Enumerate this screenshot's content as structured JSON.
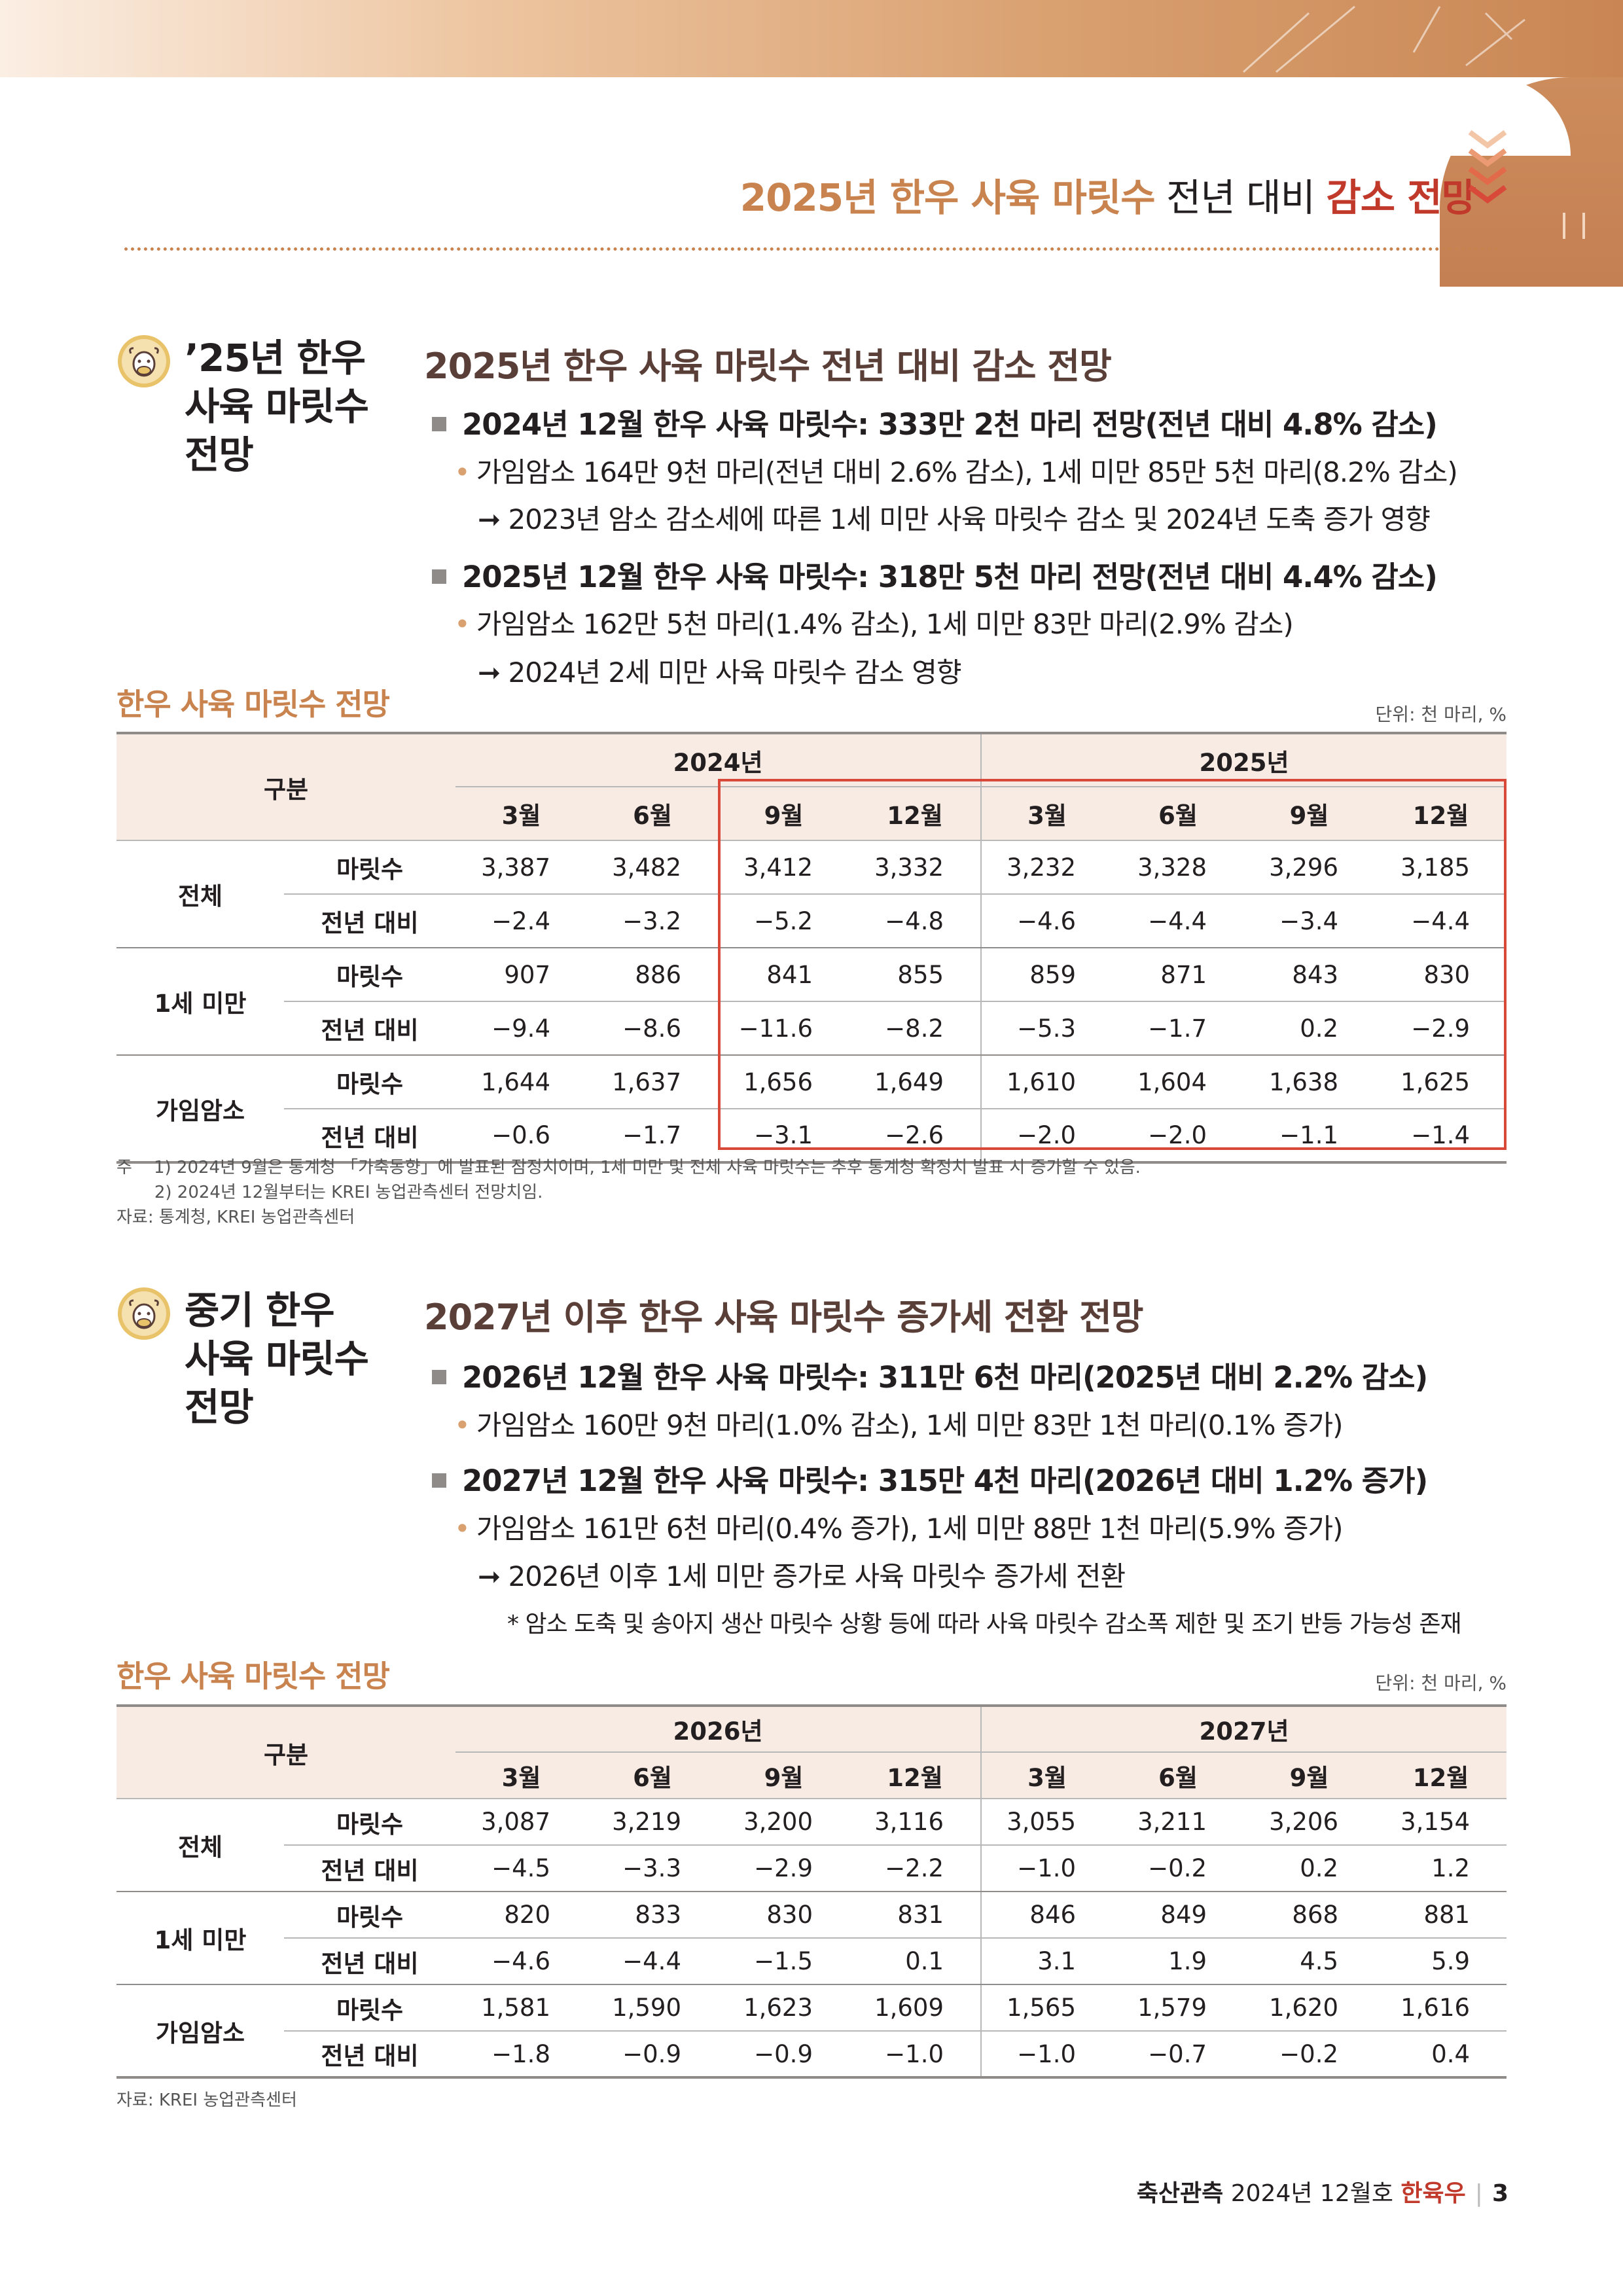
{
  "header": {
    "title_part1": "2025년 한우 사육 마릿수",
    "title_part2": " 전년 대비 ",
    "title_part3": "감소 전망"
  },
  "section1": {
    "side_title": "’25년 한우\n사육 마릿수\n전망",
    "heading": "2025년 한우 사육 마릿수 전년 대비 감소 전망",
    "bullet1": "2024년 12월 한우 사육 마릿수: 333만 2천 마리 전망(전년 대비 4.8% 감소)",
    "bullet1_sub": "가임암소 164만 9천 마리(전년 대비 2.6% 감소), 1세 미만 85만 5천 마리(8.2% 감소)",
    "bullet1_arrow": "2023년 암소 감소세에 따른 1세 미만 사육 마릿수 감소 및 2024년 도축 증가 영향",
    "bullet2": "2025년 12월 한우 사육 마릿수: 318만 5천 마리 전망(전년 대비 4.4% 감소)",
    "bullet2_sub": "가임암소 162만 5천 마리(1.4% 감소), 1세 미만 83만 마리(2.9% 감소)",
    "bullet2_arrow": "2024년 2세 미만 사육 마릿수 감소 영향",
    "table_title": "한우 사육 마릿수 전망",
    "unit": "단위: 천 마리, %",
    "table": {
      "corner": "구분",
      "years": [
        "2024년",
        "2025년"
      ],
      "months": [
        "3월",
        "6월",
        "9월",
        "12월",
        "3월",
        "6월",
        "9월",
        "12월"
      ],
      "groups": [
        {
          "name": "전체",
          "rows": [
            {
              "label": "마릿수",
              "values": [
                "3,387",
                "3,482",
                "3,412",
                "3,332",
                "3,232",
                "3,328",
                "3,296",
                "3,185"
              ]
            },
            {
              "label": "전년 대비",
              "values": [
                "−2.4",
                "−3.2",
                "−5.2",
                "−4.8",
                "−4.6",
                "−4.4",
                "−3.4",
                "−4.4"
              ]
            }
          ]
        },
        {
          "name": "1세 미만",
          "rows": [
            {
              "label": "마릿수",
              "values": [
                "907",
                "886",
                "841",
                "855",
                "859",
                "871",
                "843",
                "830"
              ]
            },
            {
              "label": "전년 대비",
              "values": [
                "−9.4",
                "−8.6",
                "−11.6",
                "−8.2",
                "−5.3",
                "−1.7",
                "0.2",
                "−2.9"
              ]
            }
          ]
        },
        {
          "name": "가임암소",
          "rows": [
            {
              "label": "마릿수",
              "values": [
                "1,644",
                "1,637",
                "1,656",
                "1,649",
                "1,610",
                "1,604",
                "1,638",
                "1,625"
              ]
            },
            {
              "label": "전년 대비",
              "values": [
                "−0.6",
                "−1.7",
                "−3.1",
                "−2.6",
                "−2.0",
                "−2.0",
                "−1.1",
                "−1.4"
              ]
            }
          ]
        }
      ]
    },
    "notes": "주    1) 2024년 9월은 통계청 「가축동향」에 발표된 잠정치이며, 1세 미만 및 전체 사육 마릿수는 추후 통계청 확정치 발표 시 증가할 수 있음.\n       2) 2024년 12월부터는 KREI 농업관측센터 전망치임.\n자료: 통계청, KREI 농업관측센터"
  },
  "section2": {
    "side_title": "중기 한우\n사육 마릿수\n전망",
    "heading": "2027년 이후 한우 사육 마릿수 증가세 전환 전망",
    "bullet1": "2026년 12월 한우 사육 마릿수: 311만 6천 마리(2025년 대비 2.2% 감소)",
    "bullet1_sub": "가임암소 160만 9천 마리(1.0% 감소), 1세 미만 83만 1천 마리(0.1% 증가)",
    "bullet2": "2027년 12월 한우 사육 마릿수: 315만 4천 마리(2026년 대비 1.2% 증가)",
    "bullet2_sub": "가임암소 161만 6천 마리(0.4% 증가), 1세 미만 88만 1천 마리(5.9% 증가)",
    "bullet2_arrow": "2026년 이후 1세 미만 증가로 사육 마릿수 증가세 전환",
    "star_note": "* 암소 도축 및 송아지 생산 마릿수 상황 등에 따라 사육 마릿수 감소폭 제한 및 조기 반등 가능성 존재",
    "table_title": "한우 사육 마릿수 전망",
    "unit": "단위: 천 마리, %",
    "table": {
      "corner": "구분",
      "years": [
        "2026년",
        "2027년"
      ],
      "months": [
        "3월",
        "6월",
        "9월",
        "12월",
        "3월",
        "6월",
        "9월",
        "12월"
      ],
      "groups": [
        {
          "name": "전체",
          "rows": [
            {
              "label": "마릿수",
              "values": [
                "3,087",
                "3,219",
                "3,200",
                "3,116",
                "3,055",
                "3,211",
                "3,206",
                "3,154"
              ]
            },
            {
              "label": "전년 대비",
              "values": [
                "−4.5",
                "−3.3",
                "−2.9",
                "−2.2",
                "−1.0",
                "−0.2",
                "0.2",
                "1.2"
              ]
            }
          ]
        },
        {
          "name": "1세 미만",
          "rows": [
            {
              "label": "마릿수",
              "values": [
                "820",
                "833",
                "830",
                "831",
                "846",
                "849",
                "868",
                "881"
              ]
            },
            {
              "label": "전년 대비",
              "values": [
                "−4.6",
                "−4.4",
                "−1.5",
                "0.1",
                "3.1",
                "1.9",
                "4.5",
                "5.9"
              ]
            }
          ]
        },
        {
          "name": "가임암소",
          "rows": [
            {
              "label": "마릿수",
              "values": [
                "1,581",
                "1,590",
                "1,623",
                "1,609",
                "1,565",
                "1,579",
                "1,620",
                "1,616"
              ]
            },
            {
              "label": "전년 대비",
              "values": [
                "−1.8",
                "−0.9",
                "−0.9",
                "−1.0",
                "−1.0",
                "−0.7",
                "−0.2",
                "0.4"
              ]
            }
          ]
        }
      ]
    },
    "notes": "자료: KREI 농업관측센터"
  },
  "footer": {
    "publication": "축산관측",
    "issue": " 2024년 12월호 ",
    "category": "한육우",
    "page": "3"
  },
  "colors": {
    "accent": "#c8834f",
    "highlight": "#d9493a",
    "header_fill": "#f7ebe3"
  }
}
